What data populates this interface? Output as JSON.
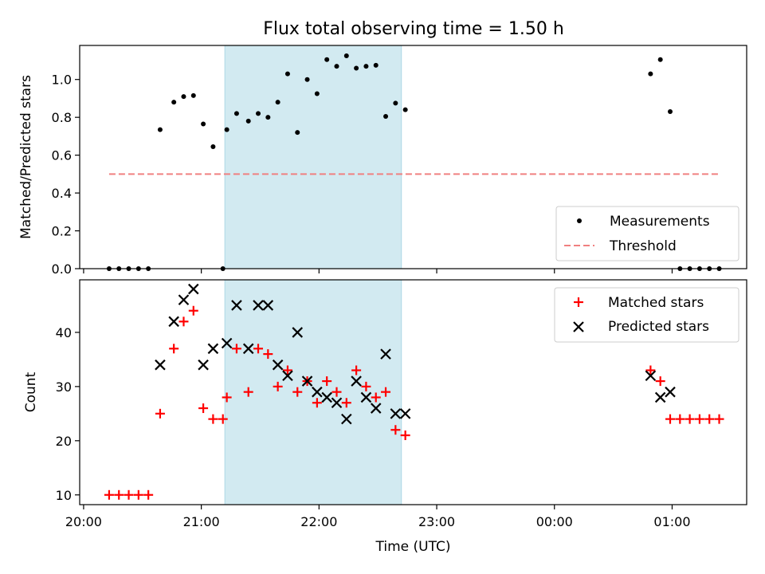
{
  "figure": {
    "title": "Flux total observing time = 1.50 h",
    "xlabel": "Time (UTC)",
    "x_ticks": [
      "20:00",
      "21:00",
      "22:00",
      "23:00",
      "00:00",
      "01:00"
    ],
    "x_tick_minutes": [
      0,
      60,
      120,
      180,
      240,
      300
    ],
    "x_range_minutes": [
      -2,
      338
    ],
    "shaded_interval_minutes": [
      72,
      162
    ],
    "shade_color": "#add8e6"
  },
  "chart_data": [
    {
      "type": "scatter",
      "ylabel": "Matched/Predicted stars",
      "ylim": [
        0,
        1.18
      ],
      "y_ticks": [
        0.0,
        0.2,
        0.4,
        0.6,
        0.8,
        1.0
      ],
      "y_tick_labels": [
        "0.0",
        "0.2",
        "0.4",
        "0.6",
        "0.8",
        "1.0"
      ],
      "legend_position": "lower-right",
      "series": [
        {
          "name": "Measurements",
          "color": "#000000",
          "marker": "dot",
          "points": [
            [
              13,
              0
            ],
            [
              18,
              0
            ],
            [
              23,
              0
            ],
            [
              28,
              0
            ],
            [
              33,
              0
            ],
            [
              39,
              0.735
            ],
            [
              46,
              0.88
            ],
            [
              51,
              0.91
            ],
            [
              56,
              0.915
            ],
            [
              61,
              0.765
            ],
            [
              66,
              0.645
            ],
            [
              71,
              0.0
            ],
            [
              73,
              0.735
            ],
            [
              78,
              0.82
            ],
            [
              84,
              0.78
            ],
            [
              89,
              0.82
            ],
            [
              94,
              0.8
            ],
            [
              99,
              0.88
            ],
            [
              104,
              1.03
            ],
            [
              109,
              0.72
            ],
            [
              114,
              1.0
            ],
            [
              119,
              0.925
            ],
            [
              124,
              1.105
            ],
            [
              129,
              1.07
            ],
            [
              134,
              1.125
            ],
            [
              139,
              1.06
            ],
            [
              144,
              1.07
            ],
            [
              149,
              1.075
            ],
            [
              154,
              0.805
            ],
            [
              159,
              0.875
            ],
            [
              164,
              0.84
            ],
            [
              289,
              1.03
            ],
            [
              294,
              1.105
            ],
            [
              299,
              0.83
            ],
            [
              304,
              0
            ],
            [
              309,
              0
            ],
            [
              314,
              0
            ],
            [
              319,
              0
            ],
            [
              324,
              0
            ]
          ]
        },
        {
          "name": "Threshold",
          "color": "#f08080",
          "style": "dashed",
          "x": [
            13,
            324
          ],
          "y": [
            0.5,
            0.5
          ]
        }
      ]
    },
    {
      "type": "scatter",
      "ylabel": "Count",
      "ylim": [
        8.2,
        49.7
      ],
      "y_ticks": [
        10,
        20,
        30,
        40
      ],
      "y_tick_labels": [
        "10",
        "20",
        "30",
        "40"
      ],
      "legend_position": "upper-right",
      "series": [
        {
          "name": "Matched stars",
          "color": "#ff0000",
          "marker": "plus",
          "points": [
            [
              13,
              10
            ],
            [
              18,
              10
            ],
            [
              23,
              10
            ],
            [
              28,
              10
            ],
            [
              33,
              10
            ],
            [
              39,
              25
            ],
            [
              46,
              37
            ],
            [
              51,
              42
            ],
            [
              56,
              44
            ],
            [
              61,
              26
            ],
            [
              66,
              24
            ],
            [
              71,
              24
            ],
            [
              73,
              28
            ],
            [
              78,
              37
            ],
            [
              84,
              29
            ],
            [
              89,
              37
            ],
            [
              94,
              36
            ],
            [
              99,
              30
            ],
            [
              104,
              33
            ],
            [
              109,
              29
            ],
            [
              114,
              31
            ],
            [
              119,
              27
            ],
            [
              124,
              31
            ],
            [
              129,
              29
            ],
            [
              134,
              27
            ],
            [
              139,
              33
            ],
            [
              144,
              30
            ],
            [
              149,
              28
            ],
            [
              154,
              29
            ],
            [
              159,
              22
            ],
            [
              164,
              21
            ],
            [
              289,
              33
            ],
            [
              294,
              31
            ],
            [
              299,
              24
            ],
            [
              304,
              24
            ],
            [
              309,
              24
            ],
            [
              314,
              24
            ],
            [
              319,
              24
            ],
            [
              324,
              24
            ]
          ]
        },
        {
          "name": "Predicted stars",
          "color": "#000000",
          "marker": "x",
          "points": [
            [
              39,
              34
            ],
            [
              46,
              42
            ],
            [
              51,
              46
            ],
            [
              56,
              48
            ],
            [
              61,
              34
            ],
            [
              66,
              37
            ],
            [
              73,
              38
            ],
            [
              78,
              45
            ],
            [
              84,
              37
            ],
            [
              89,
              45
            ],
            [
              94,
              45
            ],
            [
              99,
              34
            ],
            [
              104,
              32
            ],
            [
              109,
              40
            ],
            [
              114,
              31
            ],
            [
              119,
              29
            ],
            [
              124,
              28
            ],
            [
              129,
              27
            ],
            [
              134,
              24
            ],
            [
              139,
              31
            ],
            [
              144,
              28
            ],
            [
              149,
              26
            ],
            [
              154,
              36
            ],
            [
              159,
              25
            ],
            [
              164,
              25
            ],
            [
              289,
              32
            ],
            [
              294,
              28
            ],
            [
              299,
              29
            ]
          ]
        }
      ]
    }
  ]
}
